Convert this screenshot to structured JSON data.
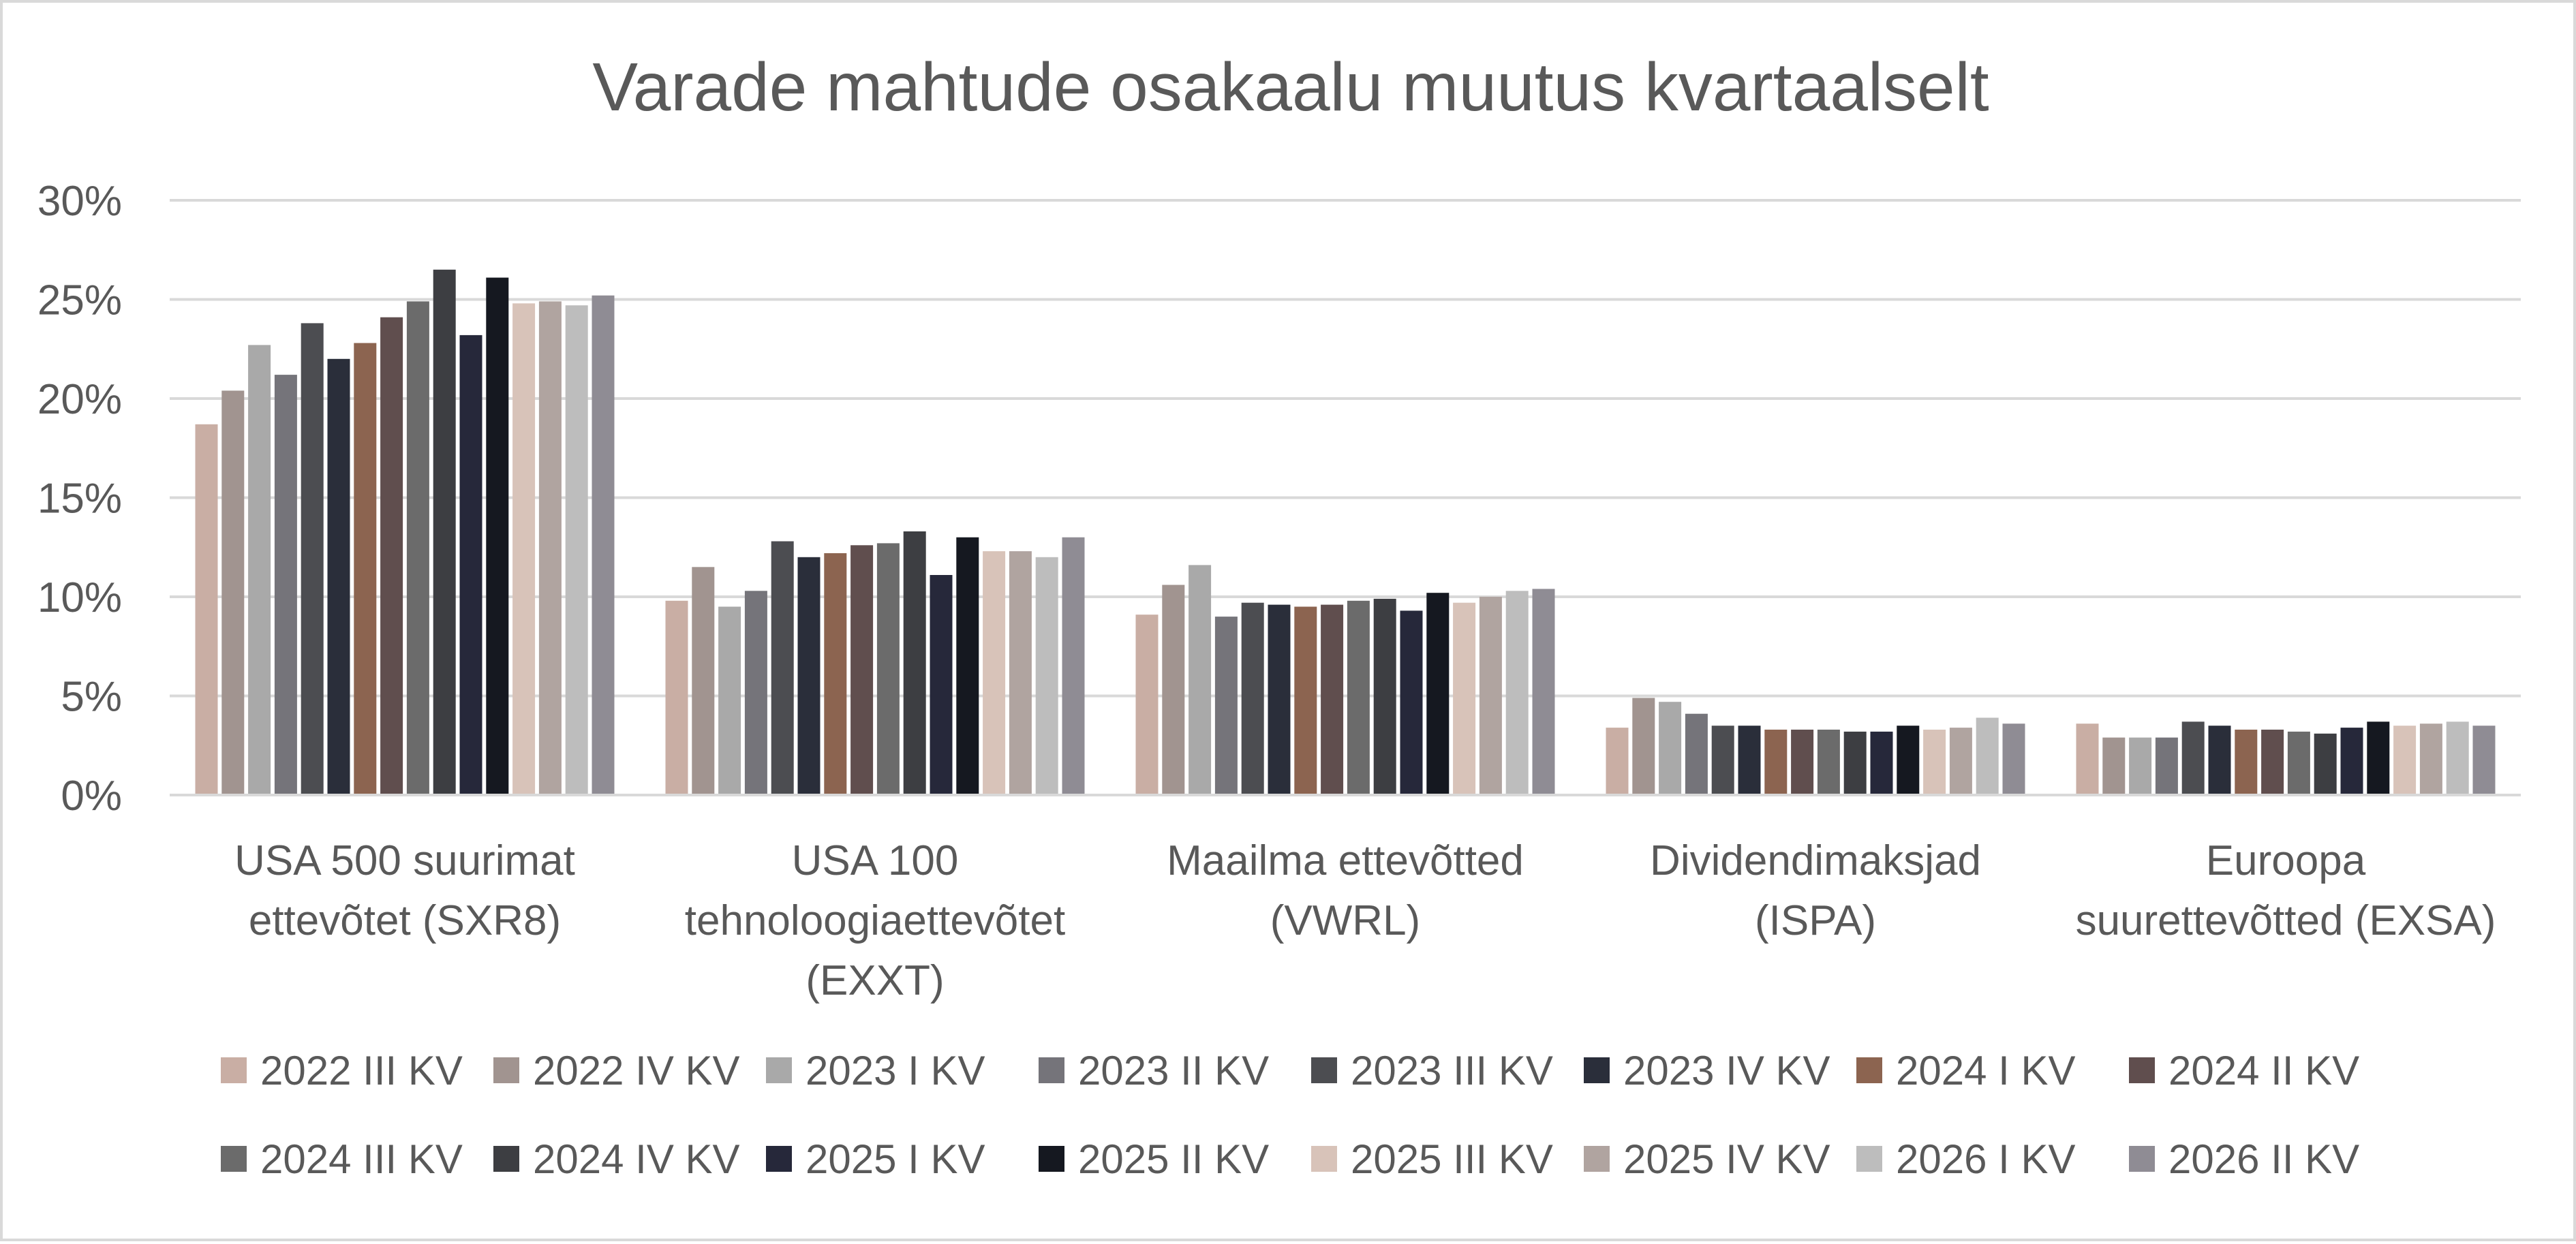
{
  "chart_data": {
    "type": "bar",
    "title": "Varade mahtude osakaalu muutus kvartaalselt",
    "xlabel": "",
    "ylabel": "",
    "ylim": [
      0,
      0.3
    ],
    "yticks": [
      {
        "value": 0.0,
        "label": "0%"
      },
      {
        "value": 0.05,
        "label": "5%"
      },
      {
        "value": 0.1,
        "label": "10%"
      },
      {
        "value": 0.15,
        "label": "15%"
      },
      {
        "value": 0.2,
        "label": "20%"
      },
      {
        "value": 0.25,
        "label": "25%"
      },
      {
        "value": 0.3,
        "label": "30%"
      }
    ],
    "grid": "horizontal",
    "legend_position": "bottom",
    "categories": [
      [
        "USA 500 suurimat",
        "ettevõtet (SXR8)"
      ],
      [
        "USA 100",
        "tehnoloogiaettevõtet",
        "(EXXT)"
      ],
      [
        "Maailma ettevõtted",
        "(VWRL)"
      ],
      [
        "Dividendimaksjad",
        "(ISPA)"
      ],
      [
        "Euroopa",
        "suurettevõtted (EXSA)"
      ]
    ],
    "series": [
      {
        "name": "2022 III KV",
        "color": "#c9aea4",
        "values": [
          0.187,
          0.098,
          0.091,
          0.034,
          0.036
        ]
      },
      {
        "name": "2022 IV KV",
        "color": "#a19490",
        "values": [
          0.204,
          0.115,
          0.106,
          0.049,
          0.029
        ]
      },
      {
        "name": "2023 I KV",
        "color": "#a9a9a9",
        "values": [
          0.227,
          0.095,
          0.116,
          0.047,
          0.029
        ]
      },
      {
        "name": "2023 II KV",
        "color": "#75747a",
        "values": [
          0.212,
          0.103,
          0.09,
          0.041,
          0.029
        ]
      },
      {
        "name": "2023 III KV",
        "color": "#4c4d51",
        "values": [
          0.238,
          0.128,
          0.097,
          0.035,
          0.037
        ]
      },
      {
        "name": "2023 IV KV",
        "color": "#2a2e3a",
        "values": [
          0.22,
          0.12,
          0.096,
          0.035,
          0.035
        ]
      },
      {
        "name": "2024 I KV",
        "color": "#8c6450",
        "values": [
          0.228,
          0.122,
          0.095,
          0.033,
          0.033
        ]
      },
      {
        "name": "2024 II KV",
        "color": "#604e4e",
        "values": [
          0.241,
          0.126,
          0.096,
          0.033,
          0.033
        ]
      },
      {
        "name": "2024 III KV",
        "color": "#6b6b6b",
        "values": [
          0.249,
          0.127,
          0.098,
          0.033,
          0.032
        ]
      },
      {
        "name": "2024 IV KV",
        "color": "#3d3e42",
        "values": [
          0.265,
          0.133,
          0.099,
          0.032,
          0.031
        ]
      },
      {
        "name": "2025 I KV",
        "color": "#26283a",
        "values": [
          0.232,
          0.111,
          0.093,
          0.032,
          0.034
        ]
      },
      {
        "name": "2025 II KV",
        "color": "#151820",
        "values": [
          0.261,
          0.13,
          0.102,
          0.035,
          0.037
        ]
      },
      {
        "name": "2025 III KV",
        "color": "#d8c3b9",
        "values": [
          0.248,
          0.123,
          0.097,
          0.033,
          0.035
        ]
      },
      {
        "name": "2025 IV KV",
        "color": "#b0a4a0",
        "values": [
          0.249,
          0.123,
          0.1,
          0.034,
          0.036
        ]
      },
      {
        "name": "2026 I KV",
        "color": "#bdbdbd",
        "values": [
          0.247,
          0.12,
          0.103,
          0.039,
          0.037
        ]
      },
      {
        "name": "2026 II KV",
        "color": "#8f8c94",
        "values": [
          0.252,
          0.13,
          0.104,
          0.036,
          0.035
        ]
      }
    ]
  }
}
